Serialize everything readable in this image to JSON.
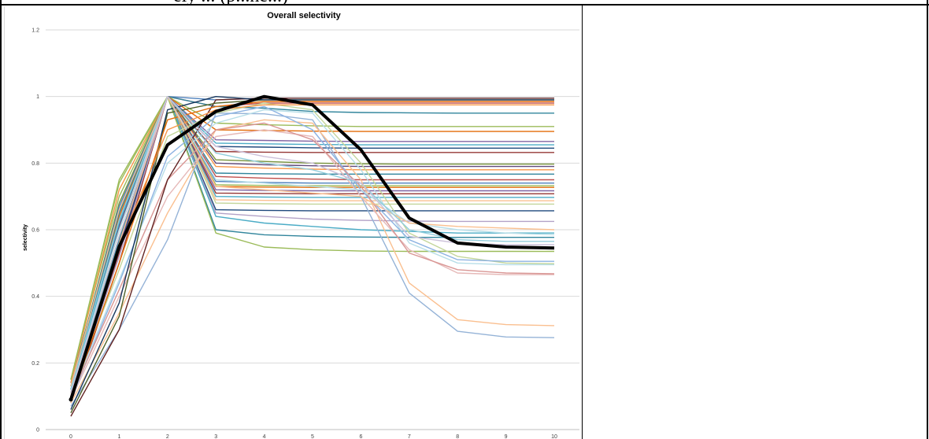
{
  "page": {
    "header_text": "ely ... (p...ne...)"
  },
  "chart_data": {
    "type": "line",
    "title": "Overall selectivity",
    "xlabel": "",
    "ylabel": "selectivity",
    "x": [
      0,
      1,
      2,
      3,
      4,
      5,
      6,
      7,
      8,
      9,
      10
    ],
    "ylim": [
      0,
      1.2
    ],
    "yticks": [
      0,
      0.2,
      0.4,
      0.6,
      0.8,
      1,
      1.2
    ],
    "ytick_labels": [
      "0",
      "0.2",
      "0.4",
      "0.6",
      "0.8",
      "1",
      "1.2"
    ],
    "xtick_labels": [
      "0",
      "1",
      "2",
      "3",
      "4",
      "5",
      "6",
      "7",
      "8",
      "9",
      "10"
    ],
    "grid": "horizontal",
    "legend": "none",
    "highlight_series": {
      "color": "#000000",
      "values": [
        0.09,
        0.55,
        0.855,
        0.955,
        1.0,
        0.975,
        0.84,
        0.635,
        0.56,
        0.548,
        0.545
      ]
    },
    "series": [
      {
        "color": "#4f81bd",
        "values": [
          0.12,
          0.62,
          1.0,
          0.99,
          0.995,
          0.995,
          0.995,
          0.995,
          0.995,
          0.995,
          0.995
        ]
      },
      {
        "color": "#c0504d",
        "values": [
          0.1,
          0.58,
          1.0,
          0.97,
          0.98,
          0.98,
          0.98,
          0.98,
          0.98,
          0.98,
          0.98
        ]
      },
      {
        "color": "#31859c",
        "values": [
          0.14,
          0.66,
          1.0,
          0.97,
          0.965,
          0.955,
          0.952,
          0.951,
          0.95,
          0.95,
          0.95
        ]
      },
      {
        "color": "#9bbb59",
        "values": [
          0.15,
          0.7,
          1.0,
          0.92,
          0.915,
          0.912,
          0.91,
          0.91,
          0.91,
          0.91,
          0.91
        ]
      },
      {
        "color": "#e36c09",
        "values": [
          0.11,
          0.64,
          1.0,
          0.9,
          0.898,
          0.896,
          0.895,
          0.895,
          0.895,
          0.895,
          0.895
        ]
      },
      {
        "color": "#8064a2",
        "values": [
          0.13,
          0.6,
          1.0,
          0.87,
          0.868,
          0.866,
          0.865,
          0.865,
          0.865,
          0.865,
          0.865
        ]
      },
      {
        "color": "#4bacc6",
        "values": [
          0.1,
          0.57,
          1.0,
          0.86,
          0.858,
          0.856,
          0.855,
          0.855,
          0.855,
          0.855,
          0.855
        ]
      },
      {
        "color": "#1f497d",
        "values": [
          0.12,
          0.63,
          1.0,
          0.85,
          0.848,
          0.846,
          0.845,
          0.845,
          0.845,
          0.845,
          0.845
        ]
      },
      {
        "color": "#953735",
        "values": [
          0.09,
          0.53,
          1.0,
          0.835,
          0.833,
          0.832,
          0.832,
          0.832,
          0.832,
          0.832,
          0.832
        ]
      },
      {
        "color": "#77933c",
        "values": [
          0.13,
          0.68,
          1.0,
          0.81,
          0.805,
          0.8,
          0.798,
          0.797,
          0.797,
          0.797,
          0.797
        ]
      },
      {
        "color": "#604a7b",
        "values": [
          0.11,
          0.61,
          1.0,
          0.8,
          0.795,
          0.792,
          0.79,
          0.79,
          0.79,
          0.79,
          0.79
        ]
      },
      {
        "color": "#f79646",
        "values": [
          0.14,
          0.72,
          1.0,
          0.79,
          0.785,
          0.782,
          0.78,
          0.78,
          0.78,
          0.78,
          0.78
        ]
      },
      {
        "color": "#31859c",
        "values": [
          0.12,
          0.65,
          1.0,
          0.77,
          0.768,
          0.767,
          0.767,
          0.767,
          0.767,
          0.767,
          0.767
        ]
      },
      {
        "color": "#c0504d",
        "values": [
          0.1,
          0.56,
          1.0,
          0.76,
          0.755,
          0.752,
          0.75,
          0.75,
          0.75,
          0.75,
          0.75
        ]
      },
      {
        "color": "#4f81bd",
        "values": [
          0.13,
          0.67,
          1.0,
          0.745,
          0.742,
          0.74,
          0.74,
          0.74,
          0.74,
          0.74,
          0.74
        ]
      },
      {
        "color": "#9bbb59",
        "values": [
          0.15,
          0.74,
          1.0,
          0.735,
          0.733,
          0.732,
          0.732,
          0.732,
          0.732,
          0.732,
          0.732
        ]
      },
      {
        "color": "#e36c09",
        "values": [
          0.11,
          0.6,
          1.0,
          0.73,
          0.728,
          0.727,
          0.727,
          0.727,
          0.727,
          0.727,
          0.727
        ]
      },
      {
        "color": "#8064a2",
        "values": [
          0.1,
          0.55,
          1.0,
          0.72,
          0.718,
          0.717,
          0.717,
          0.717,
          0.717,
          0.717,
          0.717
        ]
      },
      {
        "color": "#953735",
        "values": [
          0.08,
          0.5,
          1.0,
          0.71,
          0.709,
          0.708,
          0.708,
          0.708,
          0.708,
          0.708,
          0.708
        ]
      },
      {
        "color": "#4bacc6",
        "values": [
          0.12,
          0.62,
          1.0,
          0.7,
          0.698,
          0.697,
          0.697,
          0.697,
          0.697,
          0.697,
          0.697
        ]
      },
      {
        "color": "#fac090",
        "values": [
          0.13,
          0.66,
          1.0,
          0.69,
          0.688,
          0.687,
          0.687,
          0.687,
          0.687,
          0.687,
          0.687
        ]
      },
      {
        "color": "#c3d69b",
        "values": [
          0.11,
          0.58,
          1.0,
          0.68,
          0.678,
          0.677,
          0.677,
          0.677,
          0.677,
          0.677,
          0.677
        ]
      },
      {
        "color": "#1f497d",
        "values": [
          0.1,
          0.54,
          1.0,
          0.66,
          0.658,
          0.657,
          0.657,
          0.657,
          0.657,
          0.657,
          0.657
        ]
      },
      {
        "color": "#b3a2c7",
        "values": [
          0.09,
          0.52,
          1.0,
          0.65,
          0.64,
          0.632,
          0.628,
          0.626,
          0.625,
          0.625,
          0.625
        ]
      },
      {
        "color": "#4bacc6",
        "values": [
          0.12,
          0.6,
          1.0,
          0.64,
          0.62,
          0.61,
          0.6,
          0.595,
          0.59,
          0.59,
          0.59
        ]
      },
      {
        "color": "#31859c",
        "values": [
          0.1,
          0.57,
          1.0,
          0.6,
          0.585,
          0.58,
          0.578,
          0.577,
          0.577,
          0.577,
          0.577
        ]
      },
      {
        "color": "#9bbb59",
        "values": [
          0.15,
          0.75,
          1.0,
          0.59,
          0.548,
          0.54,
          0.536,
          0.535,
          0.535,
          0.535,
          0.535
        ]
      },
      {
        "color": "#95b3d7",
        "values": [
          0.07,
          0.3,
          0.57,
          0.95,
          0.948,
          0.93,
          0.7,
          0.41,
          0.295,
          0.278,
          0.276
        ]
      },
      {
        "color": "#fabf8f",
        "values": [
          0.08,
          0.35,
          0.65,
          0.9,
          0.93,
          0.92,
          0.75,
          0.44,
          0.33,
          0.315,
          0.312
        ]
      },
      {
        "color": "#e6b9b8",
        "values": [
          0.09,
          0.4,
          0.7,
          0.88,
          0.9,
          0.88,
          0.7,
          0.54,
          0.47,
          0.465,
          0.465
        ]
      },
      {
        "color": "#b7dee8",
        "values": [
          0.1,
          0.45,
          0.8,
          0.92,
          0.96,
          0.95,
          0.78,
          0.56,
          0.5,
          0.495,
          0.495
        ]
      },
      {
        "color": "#c3d69b",
        "values": [
          0.11,
          0.48,
          0.88,
          0.95,
          0.98,
          0.96,
          0.8,
          0.59,
          0.52,
          0.5,
          0.498
        ]
      },
      {
        "color": "#8db3e2",
        "values": [
          0.09,
          0.44,
          0.82,
          0.94,
          0.97,
          0.9,
          0.72,
          0.57,
          0.51,
          0.505,
          0.505
        ]
      },
      {
        "color": "#d99694",
        "values": [
          0.1,
          0.42,
          0.75,
          0.9,
          0.92,
          0.87,
          0.73,
          0.53,
          0.48,
          0.47,
          0.468
        ]
      },
      {
        "color": "#632423",
        "values": [
          0.04,
          0.3,
          0.75,
          0.99,
          0.995,
          0.995,
          0.995,
          0.995,
          0.995,
          0.995,
          0.995
        ]
      },
      {
        "color": "#4f6228",
        "values": [
          0.05,
          0.34,
          0.95,
          0.98,
          0.99,
          0.99,
          0.99,
          0.99,
          0.99,
          0.99,
          0.99
        ]
      },
      {
        "color": "#17375e",
        "values": [
          0.06,
          0.38,
          0.96,
          1.0,
          0.99,
          0.99,
          0.99,
          0.99,
          0.99,
          0.99,
          0.99
        ]
      },
      {
        "color": "#e36c09",
        "values": [
          0.09,
          0.5,
          0.93,
          0.97,
          0.985,
          0.985,
          0.985,
          0.985,
          0.985,
          0.985,
          0.985
        ]
      },
      {
        "color": "#f79646",
        "values": [
          0.1,
          0.55,
          0.9,
          0.96,
          0.975,
          0.975,
          0.975,
          0.975,
          0.975,
          0.975,
          0.975
        ]
      },
      {
        "color": "#b7dee8",
        "values": [
          0.11,
          0.6,
          1.0,
          0.75,
          0.74,
          0.73,
          0.72,
          0.62,
          0.6,
          0.59,
          0.585
        ]
      },
      {
        "color": "#fac090",
        "values": [
          0.1,
          0.56,
          1.0,
          0.73,
          0.72,
          0.71,
          0.7,
          0.62,
          0.61,
          0.605,
          0.6
        ]
      },
      {
        "color": "#92cddc",
        "values": [
          0.12,
          0.63,
          1.0,
          0.83,
          0.8,
          0.78,
          0.74,
          0.6,
          0.57,
          0.565,
          0.565
        ]
      },
      {
        "color": "#ccc1da",
        "values": [
          0.11,
          0.58,
          1.0,
          0.85,
          0.82,
          0.8,
          0.74,
          0.58,
          0.56,
          0.555,
          0.555
        ]
      }
    ]
  }
}
